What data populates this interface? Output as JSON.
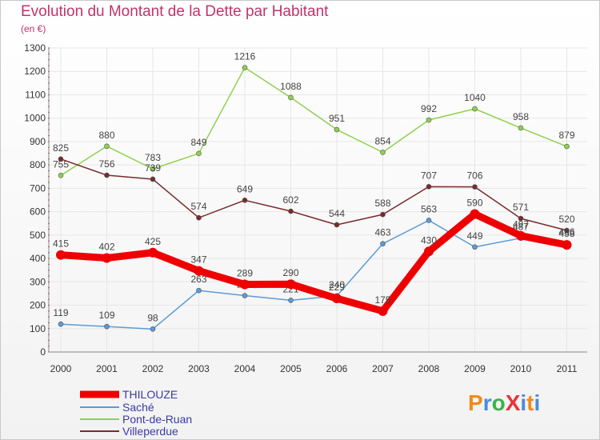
{
  "header": {
    "title": "Evolution du Montant de la Dette par Habitant",
    "subtitle": "(en €)"
  },
  "logo": {
    "text": "ProXiti"
  },
  "chart_data": {
    "type": "line",
    "title": "Evolution du Montant de la Dette par Habitant",
    "subtitle": "(en €)",
    "x": [
      "2000",
      "2001",
      "2002",
      "2003",
      "2004",
      "2005",
      "2006",
      "2007",
      "2008",
      "2009",
      "2010",
      "2011"
    ],
    "ylim": [
      0,
      1300
    ],
    "yticks": [
      0,
      100,
      200,
      300,
      400,
      500,
      600,
      700,
      800,
      900,
      1000,
      1100,
      1200,
      1300
    ],
    "grid": true,
    "legend_position": "bottom-left",
    "series": [
      {
        "name": "THILOUZE",
        "color": "#ee0000",
        "values": [
          415,
          402,
          425,
          347,
          289,
          290,
          229,
          175,
          430,
          590,
          497,
          458
        ]
      },
      {
        "name": "Saché",
        "color": "#5b9bd5",
        "values": [
          119,
          109,
          98,
          263,
          241,
          221,
          240,
          463,
          563,
          449,
          487,
          466
        ]
      },
      {
        "name": "Pont-de-Ruan",
        "color": "#8fd14f",
        "values": [
          755,
          880,
          783,
          849,
          1216,
          1088,
          951,
          854,
          992,
          1040,
          958,
          879
        ]
      },
      {
        "name": "Villeperdue",
        "color": "#7a2a2a",
        "values": [
          825,
          756,
          739,
          574,
          649,
          602,
          544,
          588,
          707,
          706,
          571,
          520
        ]
      }
    ]
  }
}
